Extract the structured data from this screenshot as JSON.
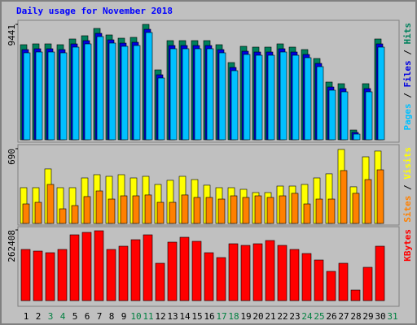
{
  "title": "Daily usage for November 2018",
  "separator": " / ",
  "days": [
    "1",
    "2",
    "3",
    "4",
    "5",
    "6",
    "7",
    "8",
    "9",
    "10",
    "11",
    "12",
    "13",
    "14",
    "15",
    "16",
    "17",
    "18",
    "19",
    "20",
    "21",
    "22",
    "23",
    "24",
    "25",
    "26",
    "27",
    "28",
    "29",
    "30",
    "31"
  ],
  "weekend": [
    false,
    false,
    true,
    true,
    false,
    false,
    false,
    false,
    false,
    true,
    true,
    false,
    false,
    false,
    false,
    false,
    true,
    true,
    false,
    false,
    false,
    false,
    false,
    true,
    true,
    false,
    false,
    false,
    false,
    false,
    true
  ],
  "weekday_color": "#000000",
  "weekend_color": "#008040",
  "chart_data": [
    {
      "type": "bar",
      "ylim": [
        0,
        9441
      ],
      "yticks": [
        9441
      ],
      "series": [
        {
          "name": "Hits",
          "color": "#00805c",
          "values": [
            7779,
            7846,
            7846,
            7779,
            8245,
            8511,
            9109,
            8577,
            8311,
            8378,
            9441,
            5718,
            8112,
            8112,
            8112,
            8112,
            7779,
            6317,
            7646,
            7580,
            7580,
            7846,
            7580,
            7380,
            6649,
            4721,
            4588,
            798,
            4588,
            8245,
            null
          ]
        },
        {
          "name": "Files",
          "color": "#0000e0",
          "values": [
            7379,
            7446,
            7446,
            7379,
            7845,
            8111,
            8709,
            8177,
            7911,
            7978,
            9041,
            5318,
            7712,
            7712,
            7712,
            7712,
            7379,
            5917,
            7246,
            7180,
            7180,
            7446,
            7180,
            6980,
            6249,
            4321,
            4188,
            600,
            4188,
            7845,
            null
          ]
        },
        {
          "name": "Pages",
          "color": "#00c0ff",
          "values": [
            7114,
            7181,
            7181,
            7114,
            7580,
            7846,
            8444,
            7912,
            7646,
            7713,
            8776,
            5053,
            7447,
            7447,
            7447,
            7447,
            7114,
            5652,
            6981,
            6915,
            6915,
            7181,
            6915,
            6715,
            5984,
            4056,
            3923,
            465,
            3923,
            7580,
            null
          ]
        }
      ]
    },
    {
      "type": "bar",
      "ylim": [
        0,
        690
      ],
      "yticks": [
        690
      ],
      "series": [
        {
          "name": "Visits",
          "color": "#ffff00",
          "values": [
            330,
            330,
            503,
            330,
            330,
            420,
            450,
            435,
            450,
            420,
            435,
            360,
            398,
            435,
            405,
            353,
            330,
            330,
            315,
            285,
            285,
            345,
            345,
            360,
            420,
            458,
            683,
            338,
            615,
            668,
            null
          ]
        },
        {
          "name": "Sites",
          "color": "#ff8000",
          "values": [
            180,
            195,
            360,
            135,
            165,
            248,
            300,
            225,
            255,
            255,
            263,
            195,
            195,
            263,
            240,
            240,
            225,
            255,
            240,
            255,
            240,
            255,
            278,
            180,
            225,
            225,
            488,
            278,
            405,
            495,
            null
          ]
        }
      ]
    },
    {
      "type": "bar",
      "ylim": [
        0,
        262408
      ],
      "yticks": [
        262408
      ],
      "series": [
        {
          "name": "KBytes",
          "color": "#ff0000",
          "values": [
            190008,
            183976,
            177944,
            190008,
            244296,
            253344,
            259376,
            190008,
            202072,
            226200,
            244296,
            138736,
            217152,
            235248,
            220168,
            177944,
            159848,
            211120,
            205088,
            211120,
            223184,
            205088,
            190008,
            174928,
            150800,
            108576,
            138736,
            39208,
            123656,
            202072,
            null
          ]
        }
      ]
    }
  ]
}
